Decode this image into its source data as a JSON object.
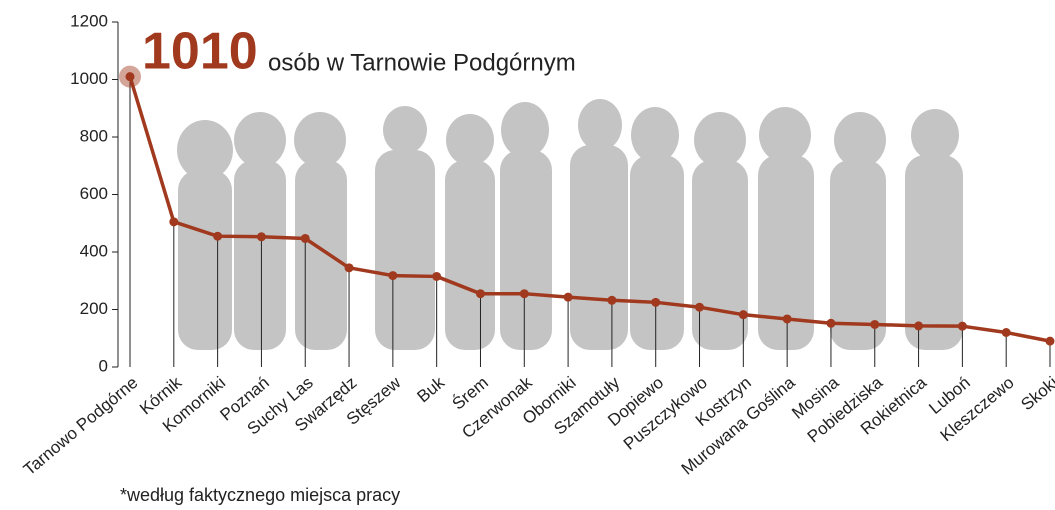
{
  "chart_data": {
    "type": "line",
    "annotation": "osób w Tarnowie Podgórnym",
    "footnote": "*według faktycznego miejsca pracy",
    "categories": [
      "Tarnowo Podgórne",
      "Kórnik",
      "Komorniki",
      "Poznań",
      "Suchy Las",
      "Swarzędz",
      "Stęszew",
      "Buk",
      "Śrem",
      "Czerwonak",
      "Oborniki",
      "Szamotuły",
      "Dopiewo",
      "Puszczykowo",
      "Kostrzyn",
      "Murowana Goślina",
      "Mosina",
      "Pobiedziska",
      "Rokietnica",
      "Luboń",
      "Kleszczewo",
      "Skoki"
    ],
    "values": [
      1010,
      505,
      455,
      453,
      447,
      345,
      318,
      315,
      255,
      255,
      243,
      232,
      225,
      208,
      182,
      167,
      152,
      148,
      143,
      142,
      120,
      90
    ],
    "color": "#a0391e",
    "ylim": [
      0,
      1200
    ],
    "yticks": [
      0,
      200,
      400,
      600,
      800,
      1000,
      1200
    ]
  }
}
